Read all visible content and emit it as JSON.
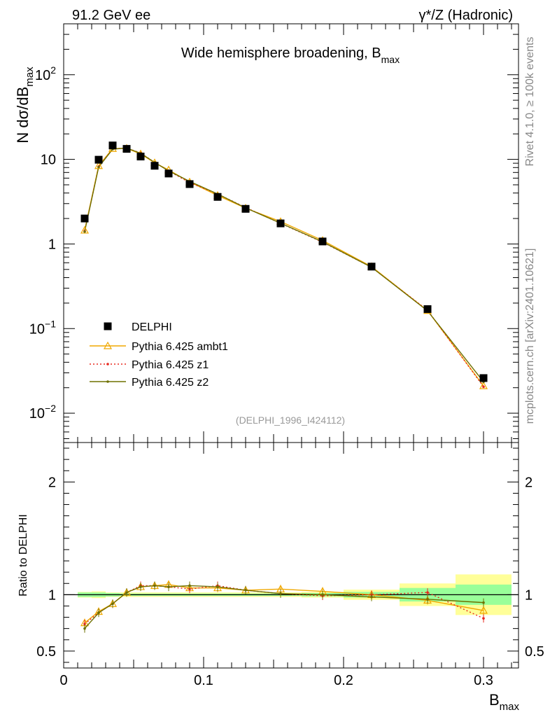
{
  "header": {
    "left": "91.2 GeV ee",
    "right": "γ*/Z (Hadronic)"
  },
  "side_labels": {
    "top": "Rivet 4.1.0, ≥ 100k events",
    "bottom": "mcplots.cern.ch [arXiv:2401.10621]"
  },
  "colors": {
    "data": "#000000",
    "ambt1": "#f0a800",
    "z1": "#e8281e",
    "z2": "#6e7000",
    "band_green": "#99ff99",
    "band_yellow": "#ffff99"
  },
  "chart_data": [
    {
      "type": "line",
      "panel": "main",
      "title": "Wide hemisphere broadening, B",
      "title_sub": "max",
      "ylabel": "N  dσ/dB",
      "ylabel_sub": "max",
      "yscale": "log",
      "ylim": [
        0.0045,
        400
      ],
      "xlim": [
        0,
        0.325
      ],
      "y_ticks": [
        {
          "value": 0.01,
          "base": "10",
          "exp": "−2"
        },
        {
          "value": 0.1,
          "base": "10",
          "exp": "−1"
        },
        {
          "value": 1,
          "base": "1",
          "exp": ""
        },
        {
          "value": 10,
          "base": "10",
          "exp": ""
        },
        {
          "value": 100,
          "base": "10",
          "exp": "2"
        }
      ],
      "watermark": "(DELPHI_1996_I424112)",
      "legend": [
        "DELPHI",
        "Pythia 6.425 ambt1",
        "Pythia 6.425 z1",
        "Pythia 6.425 z2"
      ],
      "x": [
        0.015,
        0.025,
        0.035,
        0.045,
        0.055,
        0.065,
        0.075,
        0.09,
        0.11,
        0.13,
        0.155,
        0.185,
        0.22,
        0.26,
        0.3
      ],
      "series": [
        {
          "name": "DELPHI",
          "values": [
            2.0,
            9.9,
            14.6,
            13.3,
            10.8,
            8.4,
            6.8,
            5.1,
            3.6,
            2.6,
            1.75,
            1.07,
            0.54,
            0.17,
            0.026
          ]
        },
        {
          "name": "Pythia 6.425 ambt1",
          "values": [
            1.45,
            8.4,
            13.4,
            13.5,
            11.6,
            9.1,
            7.5,
            5.4,
            3.75,
            2.65,
            1.84,
            1.1,
            0.54,
            0.163,
            0.021
          ]
        },
        {
          "name": "Pythia 6.425 z1",
          "values": [
            1.42,
            8.2,
            13.3,
            13.6,
            11.9,
            9.2,
            7.3,
            5.3,
            3.9,
            2.7,
            1.75,
            1.05,
            0.53,
            0.165,
            0.0205
          ]
        },
        {
          "name": "Pythia 6.425 z2",
          "values": [
            1.4,
            8.1,
            13.2,
            13.6,
            11.8,
            9.2,
            7.3,
            5.5,
            3.9,
            2.67,
            1.76,
            1.06,
            0.53,
            0.162,
            0.0235
          ]
        }
      ]
    },
    {
      "type": "line",
      "panel": "ratio",
      "ylabel": "Ratio to DELPHI",
      "xlabel": "B",
      "xlabel_sub": "max",
      "ylim": [
        0.35,
        2.35
      ],
      "xlim": [
        0,
        0.325
      ],
      "y_ticks": [
        "0.5",
        "1",
        "2"
      ],
      "x_ticks": [
        "0",
        "0.1",
        "0.2",
        "0.3"
      ],
      "bins": [
        {
          "lo": 0.01,
          "hi": 0.02,
          "green": 0.02,
          "yellow": 0.025
        },
        {
          "lo": 0.02,
          "hi": 0.03,
          "green": 0.02,
          "yellow": 0.03
        },
        {
          "lo": 0.03,
          "hi": 0.04,
          "green": 0.015,
          "yellow": 0.02
        },
        {
          "lo": 0.04,
          "hi": 0.05,
          "green": 0.01,
          "yellow": 0.02
        },
        {
          "lo": 0.05,
          "hi": 0.06,
          "green": 0.01,
          "yellow": 0.02
        },
        {
          "lo": 0.06,
          "hi": 0.07,
          "green": 0.01,
          "yellow": 0.02
        },
        {
          "lo": 0.07,
          "hi": 0.08,
          "green": 0.01,
          "yellow": 0.02
        },
        {
          "lo": 0.08,
          "hi": 0.1,
          "green": 0.01,
          "yellow": 0.02
        },
        {
          "lo": 0.1,
          "hi": 0.12,
          "green": 0.01,
          "yellow": 0.02
        },
        {
          "lo": 0.12,
          "hi": 0.14,
          "green": 0.01,
          "yellow": 0.02
        },
        {
          "lo": 0.14,
          "hi": 0.17,
          "green": 0.01,
          "yellow": 0.02
        },
        {
          "lo": 0.17,
          "hi": 0.2,
          "green": 0.015,
          "yellow": 0.025
        },
        {
          "lo": 0.2,
          "hi": 0.24,
          "green": 0.025,
          "yellow": 0.045
        },
        {
          "lo": 0.24,
          "hi": 0.28,
          "green": 0.06,
          "yellow": 0.1
        },
        {
          "lo": 0.28,
          "hi": 0.32,
          "green": 0.09,
          "yellow": 0.18
        }
      ],
      "x": [
        0.015,
        0.025,
        0.035,
        0.045,
        0.055,
        0.065,
        0.075,
        0.09,
        0.11,
        0.13,
        0.155,
        0.185,
        0.22,
        0.26,
        0.3
      ],
      "series": [
        {
          "name": "Pythia 6.425 ambt1",
          "values": [
            0.75,
            0.85,
            0.92,
            1.02,
            1.07,
            1.08,
            1.09,
            1.06,
            1.06,
            1.04,
            1.05,
            1.03,
            1.0,
            0.95,
            0.86
          ]
        },
        {
          "name": "Pythia 6.425 z1",
          "values": [
            0.74,
            0.84,
            0.92,
            1.02,
            1.08,
            1.08,
            1.07,
            1.05,
            1.08,
            1.04,
            1.01,
            0.99,
            1.0,
            1.02,
            0.79
          ]
        },
        {
          "name": "Pythia 6.425 z2",
          "values": [
            0.7,
            0.84,
            0.92,
            1.02,
            1.07,
            1.08,
            1.07,
            1.08,
            1.07,
            1.04,
            1.01,
            1.0,
            0.98,
            0.96,
            0.93
          ]
        }
      ]
    }
  ]
}
